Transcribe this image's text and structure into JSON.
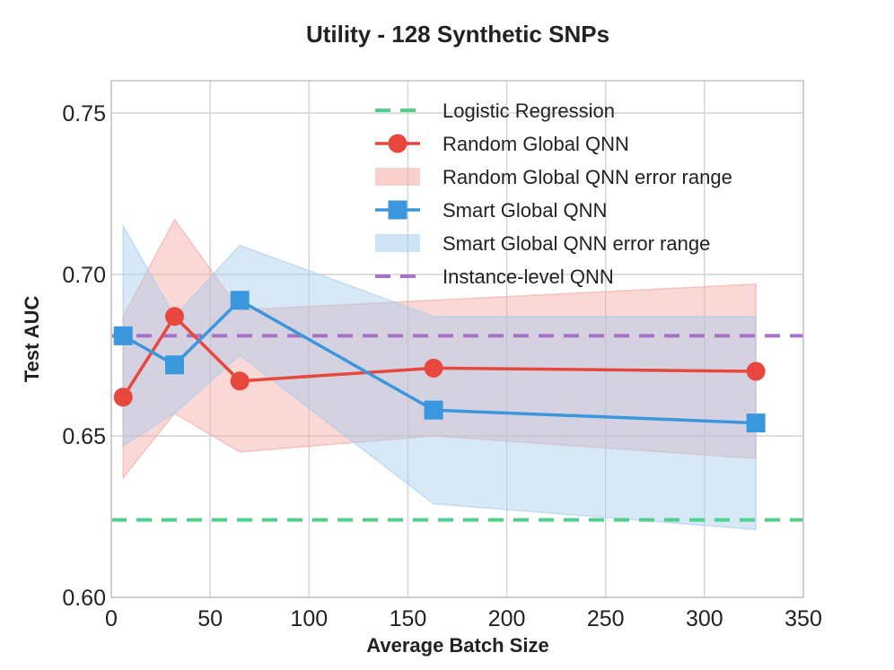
{
  "chart_data": {
    "type": "line",
    "title": "Utility - 128 Synthetic SNPs",
    "xlabel": "Average Batch Size",
    "ylabel": "Test AUC",
    "xlim": [
      0,
      350
    ],
    "ylim": [
      0.6,
      0.76
    ],
    "xticks": [
      0,
      50,
      100,
      150,
      200,
      250,
      300,
      350
    ],
    "yticks": [
      0.6,
      0.65,
      0.7,
      0.75
    ],
    "xtick_labels": [
      "0",
      "50",
      "100",
      "150",
      "200",
      "250",
      "300",
      "350"
    ],
    "ytick_labels": [
      "0.60",
      "0.65",
      "0.70",
      "0.75"
    ],
    "grid": true,
    "legend_position": "top-right",
    "x": [
      6,
      32,
      65,
      163,
      326
    ],
    "series": [
      {
        "name": "Random Global QNN",
        "kind": "line",
        "marker": "circle",
        "color": "#e8473d",
        "values": [
          0.662,
          0.687,
          0.667,
          0.671,
          0.67
        ],
        "band_name": "Random Global QNN error range",
        "band_color": "#f4a9a2",
        "band_lower": [
          0.637,
          0.657,
          0.645,
          0.65,
          0.643
        ],
        "band_upper": [
          0.687,
          0.717,
          0.689,
          0.692,
          0.697
        ]
      },
      {
        "name": "Smart Global QNN",
        "kind": "line",
        "marker": "square",
        "color": "#3a96dd",
        "values": [
          0.681,
          0.672,
          0.692,
          0.658,
          0.654
        ],
        "band_name": "Smart Global QNN error range",
        "band_color": "#a7ccee",
        "band_lower": [
          0.647,
          0.657,
          0.675,
          0.629,
          0.621
        ],
        "band_upper": [
          0.715,
          0.687,
          0.709,
          0.687,
          0.687
        ]
      }
    ],
    "reference_lines": [
      {
        "name": "Logistic Regression",
        "value": 0.624,
        "color": "#4fd18c"
      },
      {
        "name": "Instance-level QNN",
        "value": 0.681,
        "color": "#a972c9"
      }
    ],
    "legend": [
      {
        "label": "Logistic Regression",
        "kind": "dashed",
        "color": "#4fd18c"
      },
      {
        "label": "Random Global QNN",
        "kind": "line-circle",
        "color": "#e8473d"
      },
      {
        "label": "Random Global QNN error range",
        "kind": "band",
        "color": "#f4a9a2"
      },
      {
        "label": "Smart Global QNN",
        "kind": "line-square",
        "color": "#3a96dd"
      },
      {
        "label": "Smart Global QNN error range",
        "kind": "band",
        "color": "#a7ccee"
      },
      {
        "label": "Instance-level QNN",
        "kind": "dashed",
        "color": "#a972c9"
      }
    ]
  }
}
